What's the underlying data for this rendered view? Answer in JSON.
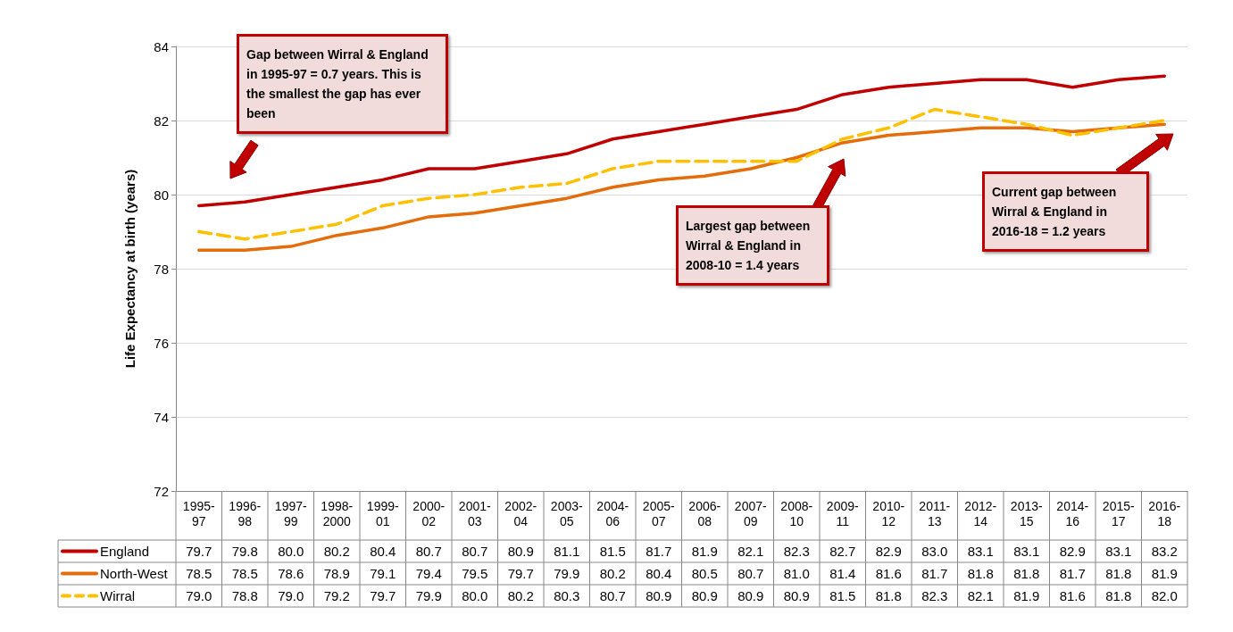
{
  "chart_data": {
    "type": "line",
    "ylabel": "Life Expectancy at birth (years)",
    "categories": [
      "1995-97",
      "1996-98",
      "1997-99",
      "1998-2000",
      "1999-01",
      "2000-02",
      "2001-03",
      "2002-04",
      "2003-05",
      "2004-06",
      "2005-07",
      "2006-08",
      "2007-09",
      "2008-10",
      "2009-11",
      "2010-12",
      "2011-13",
      "2012-14",
      "2013-15",
      "2014-16",
      "2015-17",
      "2016-18"
    ],
    "series": [
      {
        "name": "England",
        "color": "#c00000",
        "line_style": "solid",
        "values": [
          79.7,
          79.8,
          80.0,
          80.2,
          80.4,
          80.7,
          80.7,
          80.9,
          81.1,
          81.5,
          81.7,
          81.9,
          82.1,
          82.3,
          82.7,
          82.9,
          83.0,
          83.1,
          83.1,
          82.9,
          83.1,
          83.2
        ],
        "value_labels": [
          "79.7",
          "79.8",
          "80.0",
          "80.2",
          "80.4",
          "80.7",
          "80.7",
          "80.9",
          "81.1",
          "81.5",
          "81.7",
          "81.9",
          "82.1",
          "82.3",
          "82.7",
          "82.9",
          "83.0",
          "83.1",
          "83.1",
          "82.9",
          "83.1",
          "83.2"
        ]
      },
      {
        "name": "North-West",
        "color": "#e46c0a",
        "line_style": "solid",
        "values": [
          78.5,
          78.5,
          78.6,
          78.9,
          79.1,
          79.4,
          79.5,
          79.7,
          79.9,
          80.2,
          80.4,
          80.5,
          80.7,
          81.0,
          81.4,
          81.6,
          81.7,
          81.8,
          81.8,
          81.7,
          81.8,
          81.9
        ],
        "value_labels": [
          "78.5",
          "78.5",
          "78.6",
          "78.9",
          "79.1",
          "79.4",
          "79.5",
          "79.7",
          "79.9",
          "80.2",
          "80.4",
          "80.5",
          "80.7",
          "81.0",
          "81.4",
          "81.6",
          "81.7",
          "81.8",
          "81.8",
          "81.7",
          "81.8",
          "81.9"
        ]
      },
      {
        "name": "Wirral",
        "color": "#ffc000",
        "line_style": "dashed",
        "values": [
          79.0,
          78.8,
          79.0,
          79.2,
          79.7,
          79.9,
          80.0,
          80.2,
          80.3,
          80.7,
          80.9,
          80.9,
          80.9,
          80.9,
          81.5,
          81.8,
          82.3,
          82.1,
          81.9,
          81.6,
          81.8,
          82.0
        ],
        "value_labels": [
          "79.0",
          "78.8",
          "79.0",
          "79.2",
          "79.7",
          "79.9",
          "80.0",
          "80.2",
          "80.3",
          "80.7",
          "80.9",
          "80.9",
          "80.9",
          "80.9",
          "81.5",
          "81.8",
          "82.3",
          "82.1",
          "81.9",
          "81.6",
          "81.8",
          "82.0"
        ]
      }
    ],
    "ylim": [
      72,
      84
    ],
    "yticks": [
      72,
      74,
      76,
      78,
      80,
      82,
      84
    ],
    "grid": "y",
    "marker": "none",
    "legend": "bottom left",
    "annotations": [
      "Gap between Wirral & England in 1995-97 = 0.7 years. This is the smallest the gap has ever been",
      "Largest gap between Wirral & England in 2008-10 = 1.4 years",
      "Current gap between Wirral & England in 2016-18 = 1.2 years"
    ]
  }
}
